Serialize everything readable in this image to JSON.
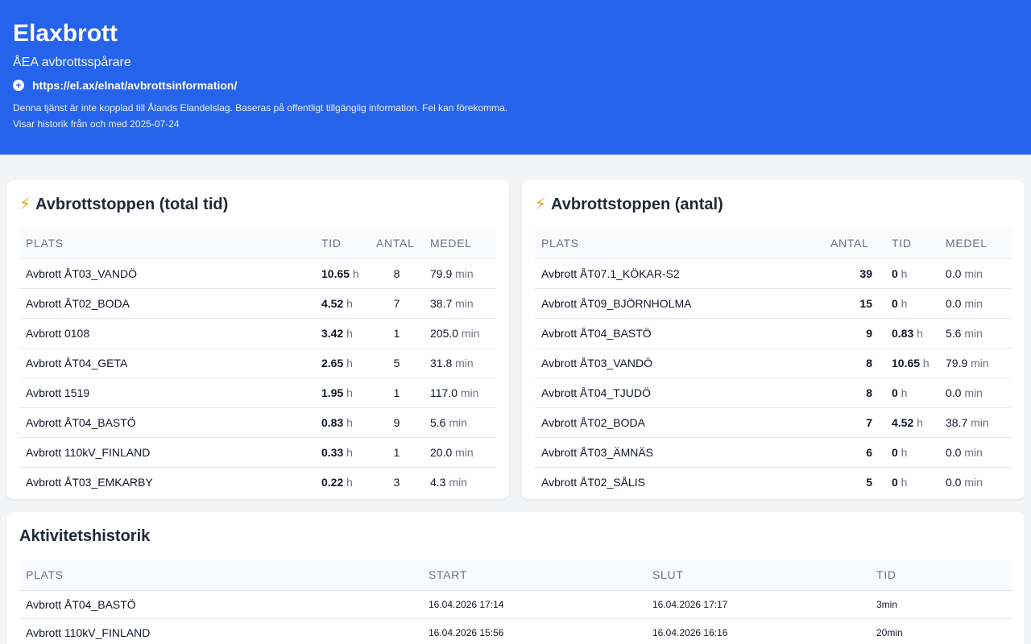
{
  "header": {
    "title": "Elaxbrott",
    "subtitle": "ÅEA avbrottsspårare",
    "link": "https://el.ax/elnat/avbrottsinformation/",
    "disclaimer": "Denna tjänst är inte kopplad till Ålands Elandelslag. Baseras på offentligt tillgänglig information. Fel kan förekomma.",
    "history_from": "Visar historik från och med 2025-07-24"
  },
  "top_time": {
    "title": "Avbrottstoppen (total tid)",
    "icon": "lightning-icon",
    "columns": [
      "PLATS",
      "TID",
      "ANTAL",
      "MEDEL"
    ],
    "rows": [
      {
        "place": "Avbrott ÅT03_VANDÖ",
        "hours": "10.65",
        "count": "8",
        "avg": "79.9"
      },
      {
        "place": "Avbrott ÅT02_BODA",
        "hours": "4.52",
        "count": "7",
        "avg": "38.7"
      },
      {
        "place": "Avbrott 0108",
        "hours": "3.42",
        "count": "1",
        "avg": "205.0"
      },
      {
        "place": "Avbrott ÅT04_GETA",
        "hours": "2.65",
        "count": "5",
        "avg": "31.8"
      },
      {
        "place": "Avbrott 1519",
        "hours": "1.95",
        "count": "1",
        "avg": "117.0"
      },
      {
        "place": "Avbrott ÅT04_BASTÖ",
        "hours": "0.83",
        "count": "9",
        "avg": "5.6"
      },
      {
        "place": "Avbrott 110kV_FINLAND",
        "hours": "0.33",
        "count": "1",
        "avg": "20.0"
      },
      {
        "place": "Avbrott ÅT03_EMKARBY",
        "hours": "0.22",
        "count": "3",
        "avg": "4.3"
      }
    ]
  },
  "top_count": {
    "title": "Avbrottstoppen (antal)",
    "icon": "lightning-icon",
    "columns": [
      "PLATS",
      "ANTAL",
      "TID",
      "MEDEL"
    ],
    "rows": [
      {
        "place": "Avbrott ÅT07.1_KÖKAR-S2",
        "count": "39",
        "hours": "0",
        "avg": "0.0"
      },
      {
        "place": "Avbrott ÅT09_BJÖRNHOLMA",
        "count": "15",
        "hours": "0",
        "avg": "0.0"
      },
      {
        "place": "Avbrott ÅT04_BASTÖ",
        "count": "9",
        "hours": "0.83",
        "avg": "5.6"
      },
      {
        "place": "Avbrott ÅT03_VANDÖ",
        "count": "8",
        "hours": "10.65",
        "avg": "79.9"
      },
      {
        "place": "Avbrott ÅT04_TJUDÖ",
        "count": "8",
        "hours": "0",
        "avg": "0.0"
      },
      {
        "place": "Avbrott ÅT02_BODA",
        "count": "7",
        "hours": "4.52",
        "avg": "38.7"
      },
      {
        "place": "Avbrott ÅT03_ÄMNÄS",
        "count": "6",
        "hours": "0",
        "avg": "0.0"
      },
      {
        "place": "Avbrott ÅT02_SÅLIS",
        "count": "5",
        "hours": "0",
        "avg": "0.0"
      }
    ]
  },
  "units": {
    "hours": "h",
    "minutes": "min"
  },
  "history": {
    "title": "Aktivitetshistorik",
    "columns": [
      "PLATS",
      "START",
      "SLUT",
      "TID"
    ],
    "rows": [
      {
        "place": "Avbrott ÅT04_BASTÖ",
        "start": "16.04.2026 17:14",
        "end": "16.04.2026 17:17",
        "duration": "3min"
      },
      {
        "place": "Avbrott 110kV_FINLAND",
        "start": "16.04.2026 15:56",
        "end": "16.04.2026 16:16",
        "duration": "20min"
      }
    ]
  }
}
